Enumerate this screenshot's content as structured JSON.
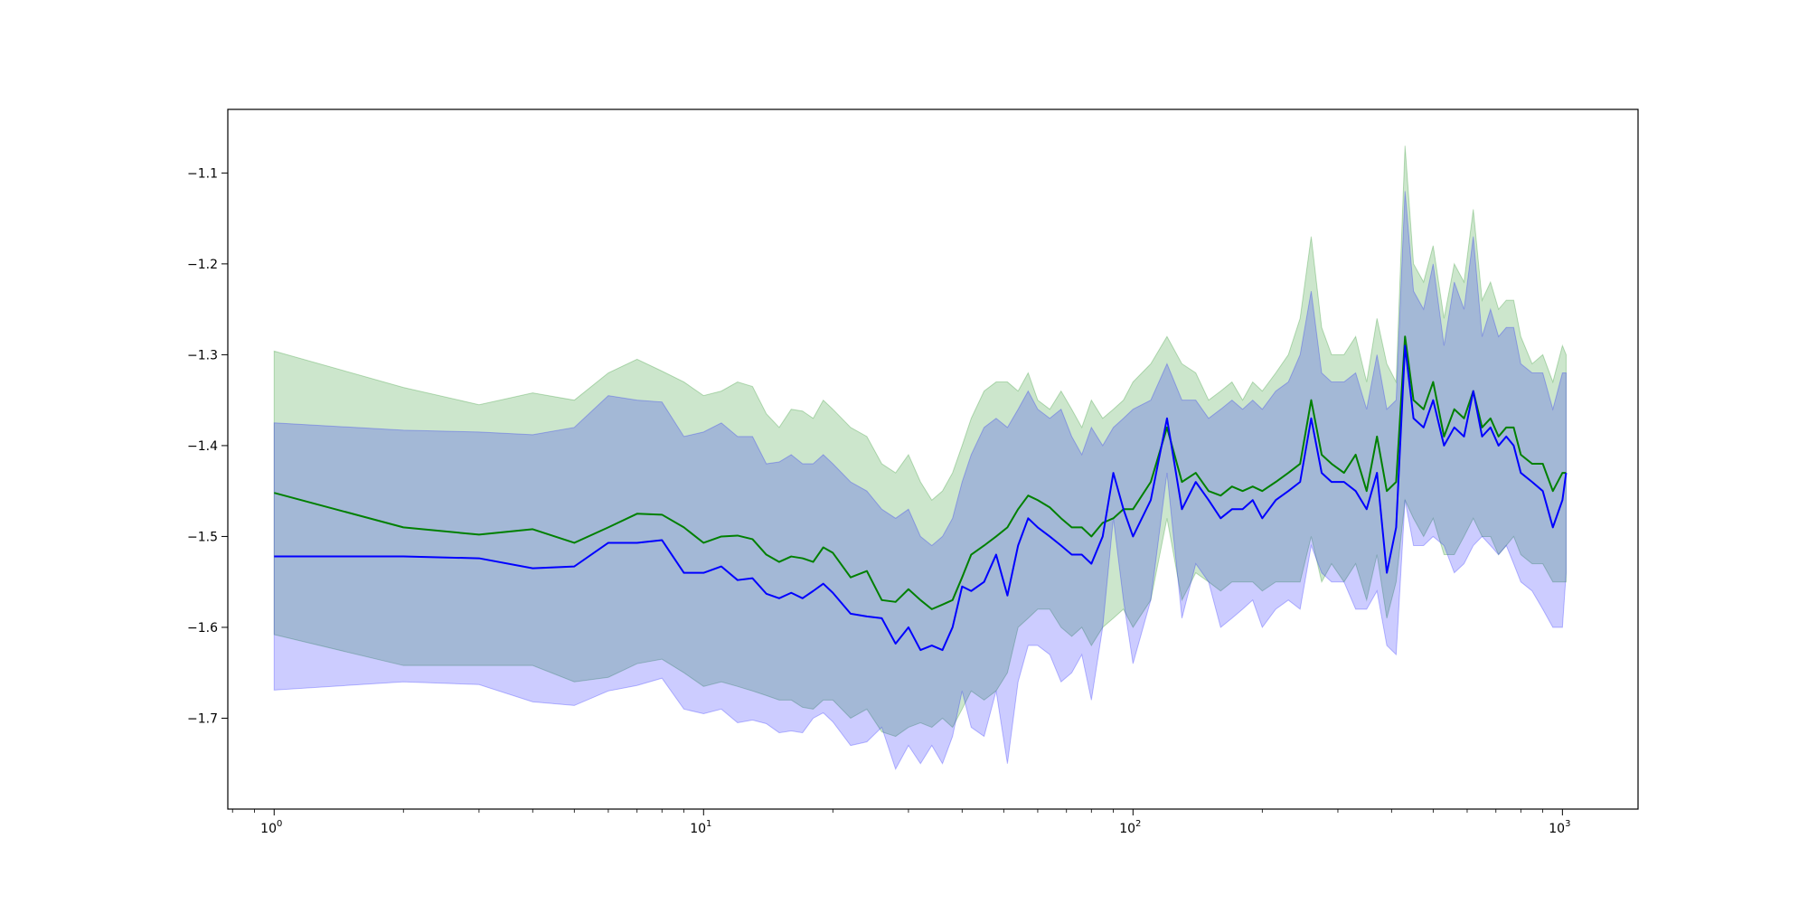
{
  "chart_data": {
    "type": "line",
    "title": "",
    "xlabel": "",
    "ylabel": "",
    "xscale": "log",
    "xlim": [
      0.78,
      1500
    ],
    "ylim": [
      -1.8,
      -1.03
    ],
    "grid": false,
    "legend": "none",
    "x_ticks": [
      {
        "base": "10",
        "exp": "0",
        "value": 1
      },
      {
        "base": "10",
        "exp": "1",
        "value": 10
      },
      {
        "base": "10",
        "exp": "2",
        "value": 100
      },
      {
        "base": "10",
        "exp": "3",
        "value": 1000
      }
    ],
    "y_ticks": [
      {
        "label": "−1.1",
        "value": -1.1
      },
      {
        "label": "−1.2",
        "value": -1.2
      },
      {
        "label": "−1.3",
        "value": -1.3
      },
      {
        "label": "−1.4",
        "value": -1.4
      },
      {
        "label": "−1.5",
        "value": -1.5
      },
      {
        "label": "−1.6",
        "value": -1.6
      },
      {
        "label": "−1.7",
        "value": -1.7
      }
    ],
    "series": [
      {
        "color": "#008000",
        "band_color": "#008000",
        "band_opacity": 0.2,
        "x": [
          1,
          2,
          3,
          4,
          5,
          6,
          7,
          8,
          9,
          10,
          11,
          12,
          13,
          14,
          15,
          16,
          17,
          18,
          19,
          20,
          22,
          24,
          26,
          28,
          30,
          32,
          34,
          36,
          38,
          40,
          42,
          45,
          48,
          51,
          54,
          57,
          60,
          64,
          68,
          72,
          76,
          80,
          85,
          90,
          95,
          100,
          110,
          120,
          130,
          140,
          150,
          160,
          170,
          180,
          190,
          200,
          215,
          230,
          245,
          260,
          275,
          290,
          310,
          330,
          350,
          370,
          390,
          410,
          430,
          450,
          475,
          500,
          530,
          560,
          590,
          620,
          650,
          680,
          710,
          740,
          770,
          800,
          850,
          900,
          950,
          1000,
          1020
        ],
        "mean": [
          -1.452,
          -1.49,
          -1.498,
          -1.492,
          -1.507,
          -1.49,
          -1.475,
          -1.476,
          -1.49,
          -1.507,
          -1.5,
          -1.499,
          -1.503,
          -1.52,
          -1.528,
          -1.522,
          -1.524,
          -1.528,
          -1.512,
          -1.518,
          -1.545,
          -1.538,
          -1.57,
          -1.572,
          -1.558,
          -1.57,
          -1.58,
          -1.575,
          -1.57,
          -1.545,
          -1.52,
          -1.51,
          -1.5,
          -1.49,
          -1.47,
          -1.455,
          -1.46,
          -1.468,
          -1.48,
          -1.49,
          -1.49,
          -1.5,
          -1.485,
          -1.48,
          -1.47,
          -1.47,
          -1.44,
          -1.38,
          -1.44,
          -1.43,
          -1.45,
          -1.455,
          -1.445,
          -1.45,
          -1.445,
          -1.45,
          -1.44,
          -1.43,
          -1.42,
          -1.35,
          -1.41,
          -1.42,
          -1.43,
          -1.41,
          -1.45,
          -1.39,
          -1.45,
          -1.44,
          -1.28,
          -1.35,
          -1.36,
          -1.33,
          -1.39,
          -1.36,
          -1.37,
          -1.34,
          -1.38,
          -1.37,
          -1.39,
          -1.38,
          -1.38,
          -1.41,
          -1.42,
          -1.42,
          -1.45,
          -1.43,
          -1.43
        ],
        "upper": [
          -1.296,
          -1.336,
          -1.355,
          -1.342,
          -1.35,
          -1.32,
          -1.305,
          -1.318,
          -1.33,
          -1.345,
          -1.34,
          -1.33,
          -1.335,
          -1.365,
          -1.38,
          -1.36,
          -1.362,
          -1.37,
          -1.35,
          -1.36,
          -1.38,
          -1.39,
          -1.42,
          -1.43,
          -1.41,
          -1.44,
          -1.46,
          -1.45,
          -1.43,
          -1.4,
          -1.37,
          -1.34,
          -1.33,
          -1.33,
          -1.34,
          -1.32,
          -1.35,
          -1.36,
          -1.34,
          -1.36,
          -1.38,
          -1.35,
          -1.37,
          -1.36,
          -1.35,
          -1.33,
          -1.31,
          -1.28,
          -1.31,
          -1.32,
          -1.35,
          -1.34,
          -1.33,
          -1.35,
          -1.33,
          -1.34,
          -1.32,
          -1.3,
          -1.26,
          -1.17,
          -1.27,
          -1.3,
          -1.3,
          -1.28,
          -1.33,
          -1.26,
          -1.31,
          -1.33,
          -1.07,
          -1.2,
          -1.22,
          -1.18,
          -1.26,
          -1.2,
          -1.22,
          -1.14,
          -1.24,
          -1.22,
          -1.25,
          -1.24,
          -1.24,
          -1.28,
          -1.31,
          -1.3,
          -1.33,
          -1.29,
          -1.3
        ],
        "lower": [
          -1.608,
          -1.642,
          -1.642,
          -1.642,
          -1.66,
          -1.655,
          -1.64,
          -1.635,
          -1.65,
          -1.665,
          -1.66,
          -1.665,
          -1.67,
          -1.675,
          -1.68,
          -1.68,
          -1.688,
          -1.69,
          -1.68,
          -1.68,
          -1.7,
          -1.69,
          -1.715,
          -1.72,
          -1.71,
          -1.705,
          -1.71,
          -1.7,
          -1.71,
          -1.69,
          -1.67,
          -1.68,
          -1.67,
          -1.65,
          -1.6,
          -1.59,
          -1.58,
          -1.58,
          -1.6,
          -1.61,
          -1.6,
          -1.62,
          -1.6,
          -1.59,
          -1.58,
          -1.6,
          -1.57,
          -1.48,
          -1.57,
          -1.54,
          -1.55,
          -1.56,
          -1.55,
          -1.55,
          -1.55,
          -1.56,
          -1.55,
          -1.55,
          -1.55,
          -1.5,
          -1.55,
          -1.53,
          -1.55,
          -1.53,
          -1.57,
          -1.52,
          -1.59,
          -1.55,
          -1.46,
          -1.48,
          -1.5,
          -1.48,
          -1.52,
          -1.52,
          -1.5,
          -1.48,
          -1.5,
          -1.5,
          -1.52,
          -1.51,
          -1.5,
          -1.52,
          -1.53,
          -1.53,
          -1.55,
          -1.55,
          -1.55
        ]
      },
      {
        "color": "#0000ff",
        "band_color": "#0000ff",
        "band_opacity": 0.2,
        "x": [
          1,
          2,
          3,
          4,
          5,
          6,
          7,
          8,
          9,
          10,
          11,
          12,
          13,
          14,
          15,
          16,
          17,
          18,
          19,
          20,
          22,
          24,
          26,
          28,
          30,
          32,
          34,
          36,
          38,
          40,
          42,
          45,
          48,
          51,
          54,
          57,
          60,
          64,
          68,
          72,
          76,
          80,
          85,
          90,
          95,
          100,
          110,
          120,
          130,
          140,
          150,
          160,
          170,
          180,
          190,
          200,
          215,
          230,
          245,
          260,
          275,
          290,
          310,
          330,
          350,
          370,
          390,
          410,
          430,
          450,
          475,
          500,
          530,
          560,
          590,
          620,
          650,
          680,
          710,
          740,
          770,
          800,
          850,
          900,
          950,
          1000,
          1020
        ],
        "mean": [
          -1.522,
          -1.522,
          -1.524,
          -1.535,
          -1.533,
          -1.507,
          -1.507,
          -1.504,
          -1.54,
          -1.54,
          -1.533,
          -1.548,
          -1.546,
          -1.563,
          -1.568,
          -1.562,
          -1.568,
          -1.56,
          -1.552,
          -1.562,
          -1.585,
          -1.588,
          -1.59,
          -1.618,
          -1.6,
          -1.625,
          -1.62,
          -1.625,
          -1.6,
          -1.555,
          -1.56,
          -1.55,
          -1.52,
          -1.565,
          -1.51,
          -1.48,
          -1.49,
          -1.5,
          -1.51,
          -1.52,
          -1.52,
          -1.53,
          -1.5,
          -1.43,
          -1.47,
          -1.5,
          -1.46,
          -1.37,
          -1.47,
          -1.44,
          -1.46,
          -1.48,
          -1.47,
          -1.47,
          -1.46,
          -1.48,
          -1.46,
          -1.45,
          -1.44,
          -1.37,
          -1.43,
          -1.44,
          -1.44,
          -1.45,
          -1.47,
          -1.43,
          -1.54,
          -1.49,
          -1.29,
          -1.37,
          -1.38,
          -1.35,
          -1.4,
          -1.38,
          -1.39,
          -1.34,
          -1.39,
          -1.38,
          -1.4,
          -1.39,
          -1.4,
          -1.43,
          -1.44,
          -1.45,
          -1.49,
          -1.46,
          -1.43
        ],
        "upper": [
          -1.375,
          -1.383,
          -1.385,
          -1.388,
          -1.38,
          -1.345,
          -1.35,
          -1.352,
          -1.39,
          -1.385,
          -1.375,
          -1.39,
          -1.39,
          -1.42,
          -1.418,
          -1.41,
          -1.42,
          -1.42,
          -1.41,
          -1.42,
          -1.44,
          -1.45,
          -1.47,
          -1.48,
          -1.47,
          -1.5,
          -1.51,
          -1.5,
          -1.48,
          -1.44,
          -1.41,
          -1.38,
          -1.37,
          -1.38,
          -1.36,
          -1.34,
          -1.36,
          -1.37,
          -1.36,
          -1.39,
          -1.41,
          -1.38,
          -1.4,
          -1.38,
          -1.37,
          -1.36,
          -1.35,
          -1.31,
          -1.35,
          -1.35,
          -1.37,
          -1.36,
          -1.35,
          -1.36,
          -1.35,
          -1.36,
          -1.34,
          -1.33,
          -1.3,
          -1.23,
          -1.32,
          -1.33,
          -1.33,
          -1.32,
          -1.36,
          -1.3,
          -1.36,
          -1.35,
          -1.12,
          -1.23,
          -1.25,
          -1.2,
          -1.29,
          -1.22,
          -1.25,
          -1.17,
          -1.28,
          -1.25,
          -1.28,
          -1.27,
          -1.27,
          -1.31,
          -1.32,
          -1.32,
          -1.36,
          -1.32,
          -1.32
        ],
        "lower": [
          -1.669,
          -1.66,
          -1.663,
          -1.682,
          -1.686,
          -1.67,
          -1.664,
          -1.656,
          -1.69,
          -1.695,
          -1.69,
          -1.705,
          -1.702,
          -1.706,
          -1.716,
          -1.714,
          -1.716,
          -1.7,
          -1.694,
          -1.704,
          -1.73,
          -1.726,
          -1.71,
          -1.756,
          -1.73,
          -1.75,
          -1.73,
          -1.75,
          -1.72,
          -1.67,
          -1.71,
          -1.72,
          -1.67,
          -1.75,
          -1.66,
          -1.62,
          -1.62,
          -1.63,
          -1.66,
          -1.65,
          -1.63,
          -1.68,
          -1.6,
          -1.48,
          -1.57,
          -1.64,
          -1.57,
          -1.43,
          -1.59,
          -1.53,
          -1.55,
          -1.6,
          -1.59,
          -1.58,
          -1.57,
          -1.6,
          -1.58,
          -1.57,
          -1.58,
          -1.51,
          -1.54,
          -1.55,
          -1.55,
          -1.58,
          -1.58,
          -1.56,
          -1.62,
          -1.63,
          -1.46,
          -1.51,
          -1.51,
          -1.5,
          -1.51,
          -1.54,
          -1.53,
          -1.51,
          -1.5,
          -1.51,
          -1.52,
          -1.51,
          -1.53,
          -1.55,
          -1.56,
          -1.58,
          -1.6,
          -1.6,
          -1.54
        ]
      }
    ]
  }
}
